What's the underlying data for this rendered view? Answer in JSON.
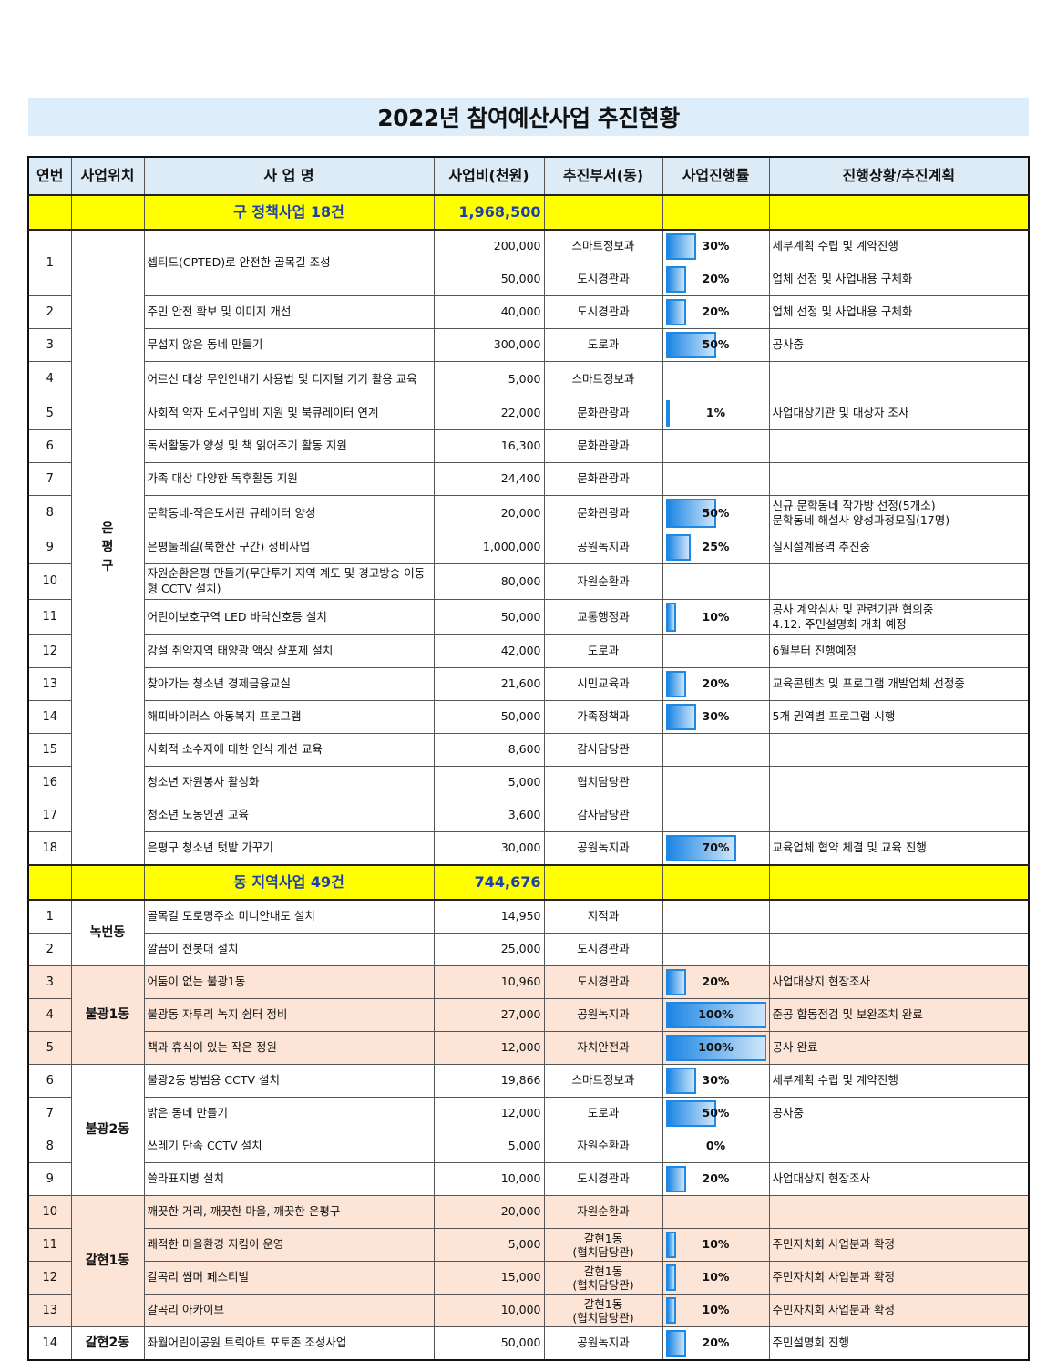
{
  "title": "2022년 참여예산사업 추진현황",
  "headers": [
    "연번",
    "사업위치",
    "사 업 명",
    "사업비(천원)",
    "추진부서(동)",
    "사업진행률",
    "진행상황/추진계획"
  ],
  "colors": {
    "title_band": "#ddeefa",
    "header": "#ddebf7",
    "section": "#ffff00",
    "section_text": "#1a3fae",
    "shade": "#fce4d6",
    "bar": "#1e88e5"
  },
  "sections": [
    {
      "title": "구 정책사업 18건",
      "total": "1,968,500",
      "groups": [
        {
          "location": "은평구",
          "vertical": true,
          "shaded": false,
          "rows": [
            {
              "no": "1",
              "name": "셉티드(CPTED)로 안전한 골목길 조성",
              "lines": [
                {
                  "budget": "200,000",
                  "dept": "스마트정보과",
                  "progress": 30,
                  "progress_label": "30%",
                  "status": "세부계획 수립 및 계약진행"
                },
                {
                  "budget": "50,000",
                  "dept": "도시경관과",
                  "progress": 20,
                  "progress_label": "20%",
                  "status": "업체 선정 및 사업내용 구체화"
                }
              ]
            },
            {
              "no": "2",
              "name": "주민 안전 확보 및 이미지 개선",
              "lines": [
                {
                  "budget": "40,000",
                  "dept": "도시경관과",
                  "progress": 20,
                  "progress_label": "20%",
                  "status": "업체 선정 및 사업내용 구체화"
                }
              ]
            },
            {
              "no": "3",
              "name": "무섭지 않은 동네 만들기",
              "lines": [
                {
                  "budget": "300,000",
                  "dept": "도로과",
                  "progress": 50,
                  "progress_label": "50%",
                  "status": "공사중"
                }
              ]
            },
            {
              "no": "4",
              "name": "어르신 대상 무인안내기 사용법 및 디지털 기기 활용 교육",
              "lines": [
                {
                  "budget": "5,000",
                  "dept": "스마트정보과",
                  "progress": null,
                  "progress_label": "",
                  "status": ""
                }
              ]
            },
            {
              "no": "5",
              "name": "사회적 약자 도서구입비 지원 및 북큐레이터 연계",
              "lines": [
                {
                  "budget": "22,000",
                  "dept": "문화관광과",
                  "progress": 1,
                  "progress_label": "1%",
                  "status": "사업대상기관 및 대상자 조사"
                }
              ]
            },
            {
              "no": "6",
              "name": "독서활동가 양성 및 책 읽어주기 활동 지원",
              "lines": [
                {
                  "budget": "16,300",
                  "dept": "문화관광과",
                  "progress": null,
                  "progress_label": "",
                  "status": ""
                }
              ]
            },
            {
              "no": "7",
              "name": "가족 대상 다양한 독후활동 지원",
              "lines": [
                {
                  "budget": "24,400",
                  "dept": "문화관광과",
                  "progress": null,
                  "progress_label": "",
                  "status": ""
                }
              ]
            },
            {
              "no": "8",
              "name": "문학동네-작은도서관 큐레이터 양성",
              "lines": [
                {
                  "budget": "20,000",
                  "dept": "문화관광과",
                  "progress": 50,
                  "progress_label": "50%",
                  "status": "신규 문학동네 작가방 선정(5개소)\n문학동네 해설사 양성과정모집(17명)"
                }
              ]
            },
            {
              "no": "9",
              "name": "은평둘레길(북한산 구간) 정비사업",
              "lines": [
                {
                  "budget": "1,000,000",
                  "dept": "공원녹지과",
                  "progress": 25,
                  "progress_label": "25%",
                  "status": "실시설계용역 추진중"
                }
              ]
            },
            {
              "no": "10",
              "name": "자원순환은평 만들기(무단투기 지역 계도 및 경고방송 이동형 CCTV 설치)",
              "lines": [
                {
                  "budget": "80,000",
                  "dept": "자원순환과",
                  "progress": null,
                  "progress_label": "",
                  "status": ""
                }
              ]
            },
            {
              "no": "11",
              "name": "어린이보호구역 LED 바닥신호등 설치",
              "lines": [
                {
                  "budget": "50,000",
                  "dept": "교통행정과",
                  "progress": 10,
                  "progress_label": "10%",
                  "status": "공사 계약심사 및 관련기관 협의중\n4.12. 주민설명회 개최 예정"
                }
              ]
            },
            {
              "no": "12",
              "name": "강설 취약지역 태양광 액상 살포제 설치",
              "lines": [
                {
                  "budget": "42,000",
                  "dept": "도로과",
                  "progress": null,
                  "progress_label": "",
                  "status": "6월부터 진행예정"
                }
              ]
            },
            {
              "no": "13",
              "name": "찾아가는 청소년 경제금융교실",
              "lines": [
                {
                  "budget": "21,600",
                  "dept": "시민교육과",
                  "progress": 20,
                  "progress_label": "20%",
                  "status": "교육콘텐츠 및 프로그램 개발업체 선정중"
                }
              ]
            },
            {
              "no": "14",
              "name": "해피바이러스 아동복지 프로그램",
              "lines": [
                {
                  "budget": "50,000",
                  "dept": "가족정책과",
                  "progress": 30,
                  "progress_label": "30%",
                  "status": "5개 권역별 프로그램 시행"
                }
              ]
            },
            {
              "no": "15",
              "name": "사회적 소수자에 대한 인식 개선 교육",
              "lines": [
                {
                  "budget": "8,600",
                  "dept": "감사담당관",
                  "progress": null,
                  "progress_label": "",
                  "status": ""
                }
              ]
            },
            {
              "no": "16",
              "name": "청소년 자원봉사 활성화",
              "lines": [
                {
                  "budget": "5,000",
                  "dept": "협치담당관",
                  "progress": null,
                  "progress_label": "",
                  "status": ""
                }
              ]
            },
            {
              "no": "17",
              "name": "청소년 노동인권 교육",
              "lines": [
                {
                  "budget": "3,600",
                  "dept": "감사담당관",
                  "progress": null,
                  "progress_label": "",
                  "status": ""
                }
              ]
            },
            {
              "no": "18",
              "name": "은평구 청소년 텃밭 가꾸기",
              "lines": [
                {
                  "budget": "30,000",
                  "dept": "공원녹지과",
                  "progress": 70,
                  "progress_label": "70%",
                  "status": "교육업체 협약 체결 및 교육 진행"
                }
              ]
            }
          ]
        }
      ]
    },
    {
      "title": "동 지역사업 49건",
      "total": "744,676",
      "groups": [
        {
          "location": "녹번동",
          "vertical": false,
          "shaded": false,
          "rows": [
            {
              "no": "1",
              "name": "골목길 도로명주소 미니안내도 설치",
              "lines": [
                {
                  "budget": "14,950",
                  "dept": "지적과",
                  "progress": null,
                  "progress_label": "",
                  "status": ""
                }
              ]
            },
            {
              "no": "2",
              "name": "깔끔이 전봇대 설치",
              "lines": [
                {
                  "budget": "25,000",
                  "dept": "도시경관과",
                  "progress": null,
                  "progress_label": "",
                  "status": ""
                }
              ]
            }
          ]
        },
        {
          "location": "불광1동",
          "vertical": false,
          "shaded": true,
          "rows": [
            {
              "no": "3",
              "name": "어둠이 없는 불광1동",
              "lines": [
                {
                  "budget": "10,960",
                  "dept": "도시경관과",
                  "progress": 20,
                  "progress_label": "20%",
                  "status": "사업대상지 현장조사"
                }
              ]
            },
            {
              "no": "4",
              "name": "불광동 자투리 녹지 쉼터 정비",
              "lines": [
                {
                  "budget": "27,000",
                  "dept": "공원녹지과",
                  "progress": 100,
                  "progress_label": "100%",
                  "status": "준공 합동점검 및 보완조치 완료"
                }
              ]
            },
            {
              "no": "5",
              "name": "책과 휴식이 있는 작은 정원",
              "lines": [
                {
                  "budget": "12,000",
                  "dept": "자치안전과",
                  "progress": 100,
                  "progress_label": "100%",
                  "status": "공사 완료"
                }
              ]
            }
          ]
        },
        {
          "location": "불광2동",
          "vertical": false,
          "shaded": false,
          "rows": [
            {
              "no": "6",
              "name": "불광2동 방범용 CCTV 설치",
              "lines": [
                {
                  "budget": "19,866",
                  "dept": "스마트정보과",
                  "progress": 30,
                  "progress_label": "30%",
                  "status": "세부계획 수립 및 계약진행"
                }
              ]
            },
            {
              "no": "7",
              "name": "밝은 동네 만들기",
              "lines": [
                {
                  "budget": "12,000",
                  "dept": "도로과",
                  "progress": 50,
                  "progress_label": "50%",
                  "status": "공사중"
                }
              ]
            },
            {
              "no": "8",
              "name": "쓰레기 단속 CCTV 설치",
              "lines": [
                {
                  "budget": "5,000",
                  "dept": "자원순환과",
                  "progress": 0,
                  "progress_label": "0%",
                  "status": ""
                }
              ]
            },
            {
              "no": "9",
              "name": "쓸라표지병 설치",
              "lines": [
                {
                  "budget": "10,000",
                  "dept": "도시경관과",
                  "progress": 20,
                  "progress_label": "20%",
                  "status": "사업대상지 현장조사"
                }
              ]
            }
          ]
        },
        {
          "location": "갈현1동",
          "vertical": false,
          "shaded": true,
          "rows": [
            {
              "no": "10",
              "name": "깨끗한 거리, 깨끗한 마을, 깨끗한 은평구",
              "lines": [
                {
                  "budget": "20,000",
                  "dept": "자원순환과",
                  "progress": null,
                  "progress_label": "",
                  "status": ""
                }
              ]
            },
            {
              "no": "11",
              "name": "쾌적한 마을환경 지킴이 운영",
              "lines": [
                {
                  "budget": "5,000",
                  "dept": "갈현1동\n(협치담당관)",
                  "progress": 10,
                  "progress_label": "10%",
                  "status": "주민자치회 사업분과 확정"
                }
              ]
            },
            {
              "no": "12",
              "name": "갈곡리 썸머 페스티벌",
              "lines": [
                {
                  "budget": "15,000",
                  "dept": "갈현1동\n(협치담당관)",
                  "progress": 10,
                  "progress_label": "10%",
                  "status": "주민자치회 사업분과 확정"
                }
              ]
            },
            {
              "no": "13",
              "name": "갈곡리 아카이브",
              "lines": [
                {
                  "budget": "10,000",
                  "dept": "갈현1동\n(협치담당관)",
                  "progress": 10,
                  "progress_label": "10%",
                  "status": "주민자치회 사업분과 확정"
                }
              ]
            }
          ]
        },
        {
          "location": "갈현2동",
          "vertical": false,
          "shaded": false,
          "rows": [
            {
              "no": "14",
              "name": "좌월어린이공원 트릭아트 포토존 조성사업",
              "lines": [
                {
                  "budget": "50,000",
                  "dept": "공원녹지과",
                  "progress": 20,
                  "progress_label": "20%",
                  "status": "주민설명회 진행"
                }
              ]
            }
          ]
        }
      ]
    }
  ]
}
